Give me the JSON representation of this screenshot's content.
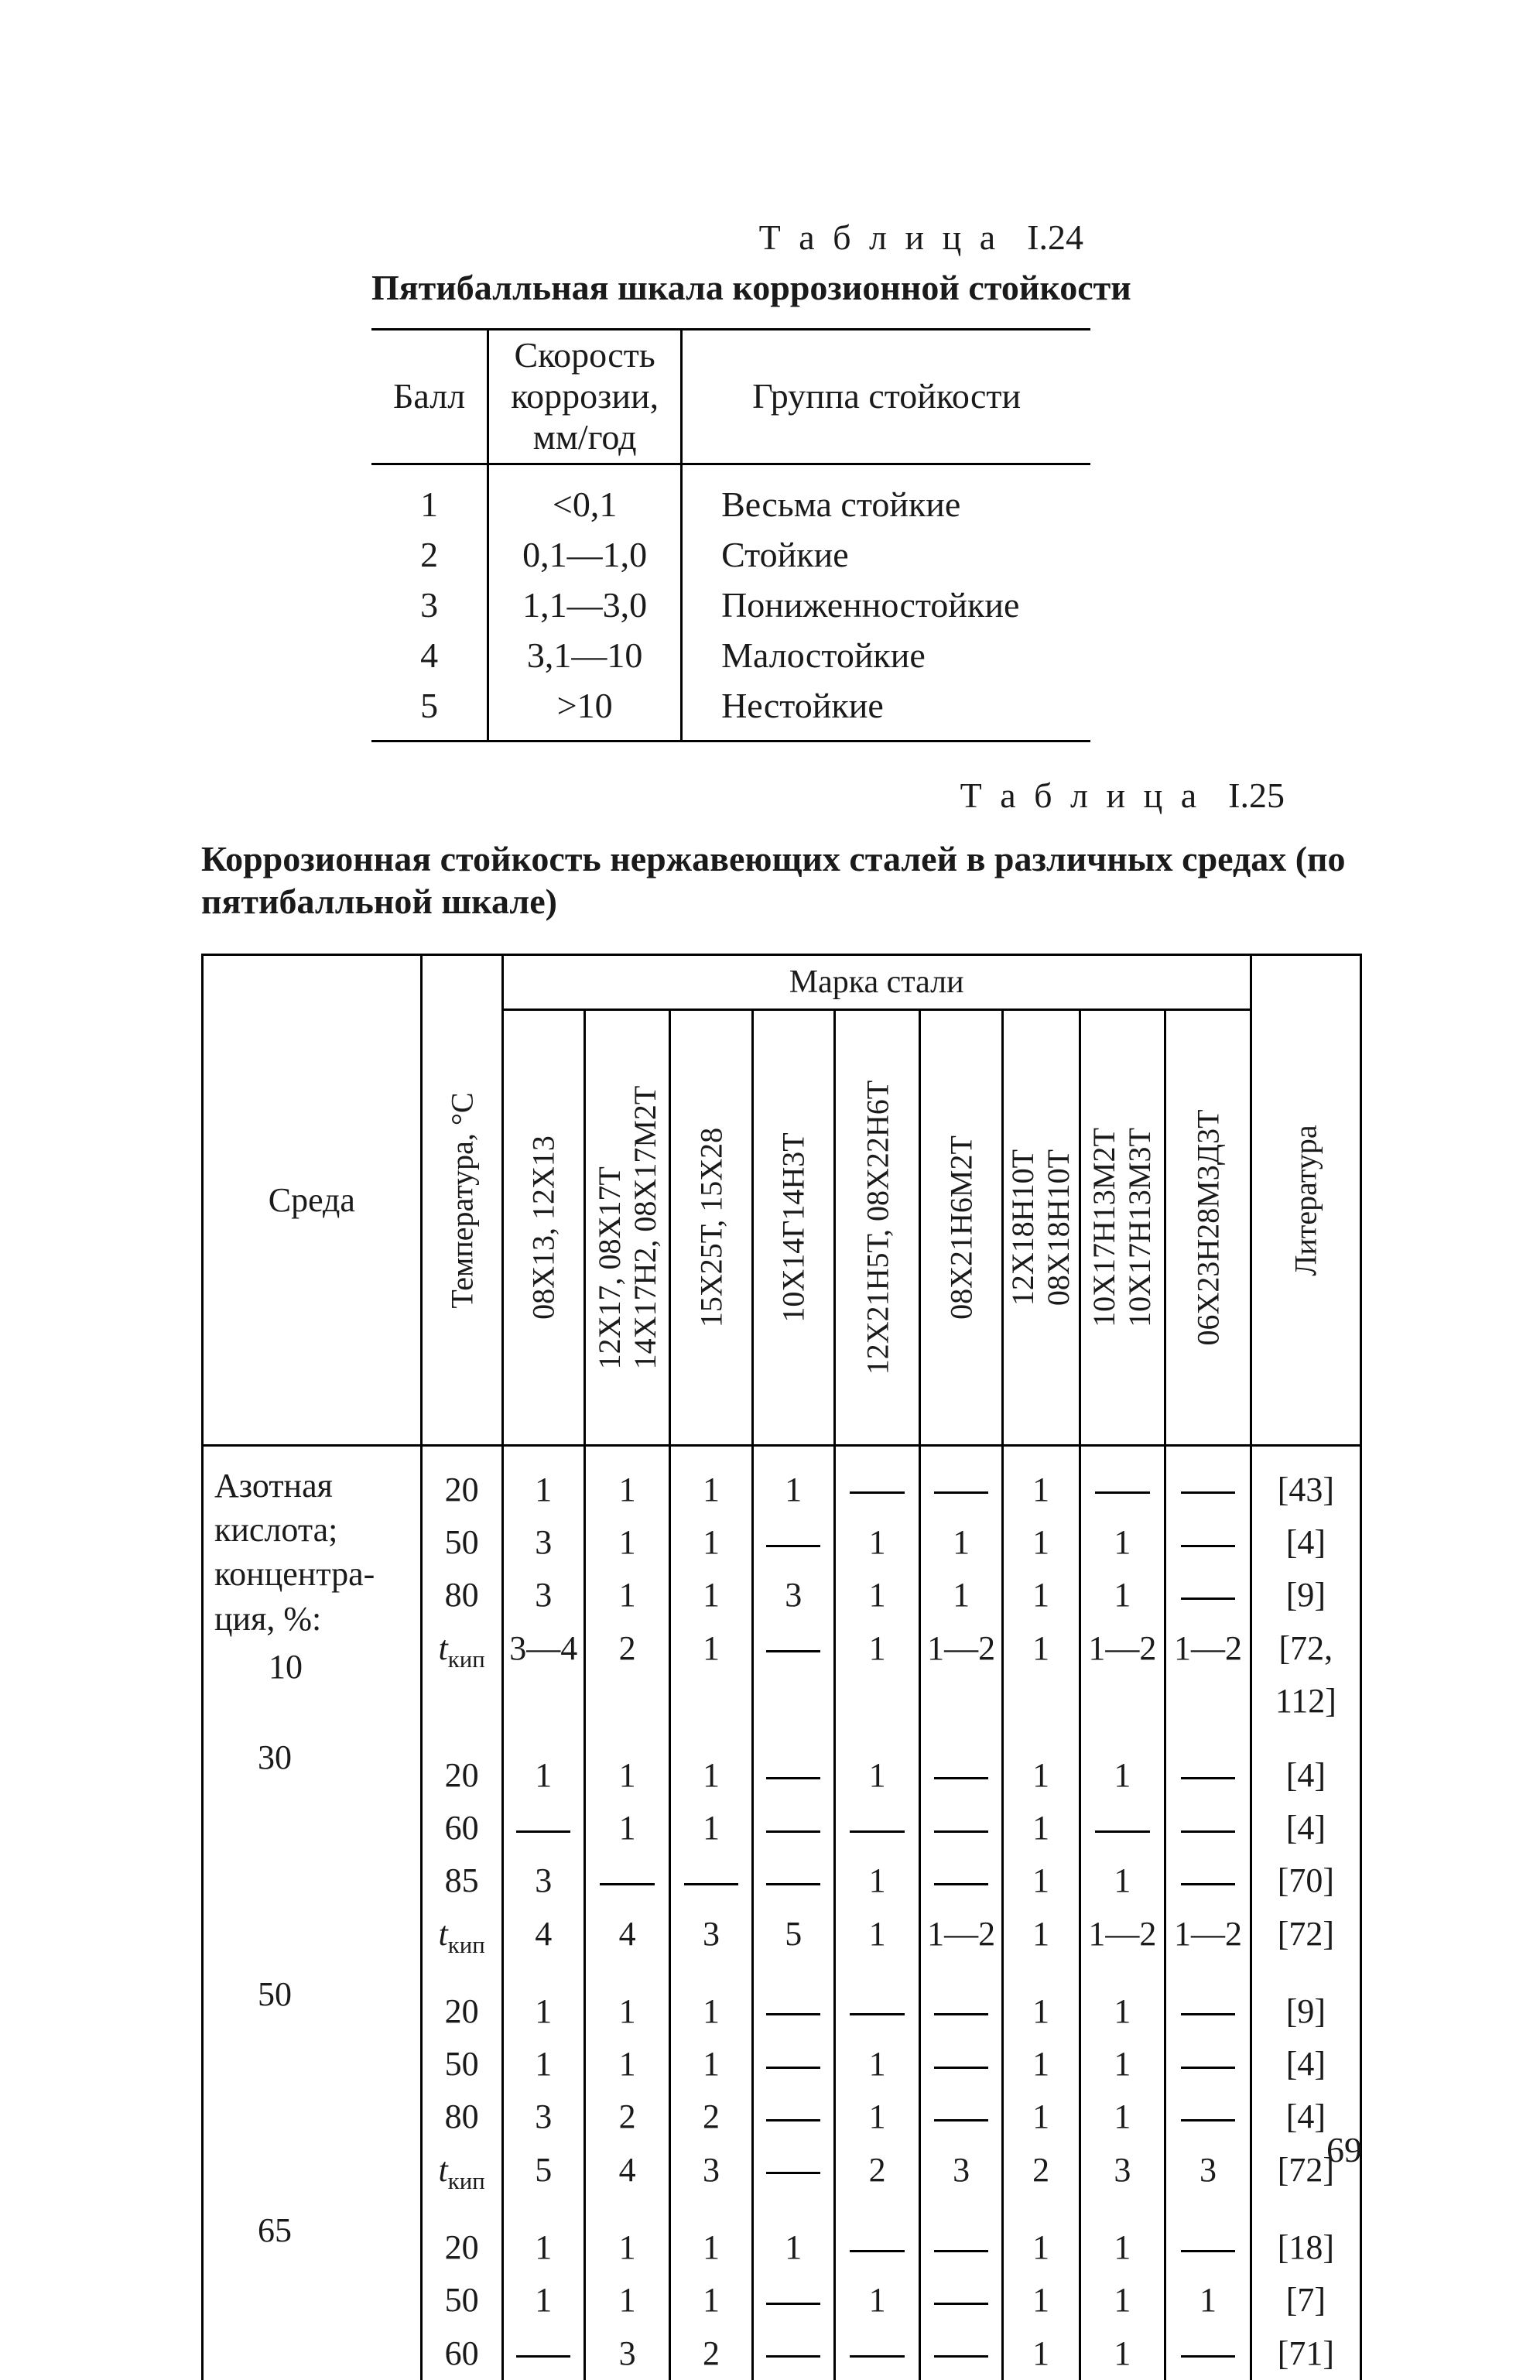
{
  "table124": {
    "label_prefix": "Т а б л и ц а",
    "label_num": "I.24",
    "title": "Пятибалльная шкала коррозионной стойкости",
    "headers": {
      "ball": "Балл",
      "rate": "Скорость\nкоррозии,\nмм/год",
      "group": "Группа стойкости"
    },
    "rows": [
      {
        "ball": "1",
        "rate": "<0,1",
        "group": "Весьма стойкие"
      },
      {
        "ball": "2",
        "rate": "0,1—1,0",
        "group": "Стойкие"
      },
      {
        "ball": "3",
        "rate": "1,1—3,0",
        "group": "Пониженностойкие"
      },
      {
        "ball": "4",
        "rate": "3,1—10",
        "group": "Малостойкие"
      },
      {
        "ball": "5",
        "rate": ">10",
        "group": "Нестойкие"
      }
    ]
  },
  "table125": {
    "label_prefix": "Т а б л и ц а",
    "label_num": "I.25",
    "title": "Коррозионная стойкость нержавеющих сталей в различных средах (по пятибалльной шкале)",
    "headers": {
      "env": "Среда",
      "temp": "Температура, °С",
      "spanner": "Марка стали",
      "steels": [
        "08Х13, 12Х13",
        "12Х17, 08Х17Т\n14Х17Н2, 08Х17М2Т",
        "15Х25Т, 15Х28",
        "10Х14Г14Н3Т",
        "12Х21Н5Т, 08Х22Н6Т",
        "08Х21Н6М2Т",
        "12Х18Н10Т\n08Х18Н10Т",
        "10Х17Н13М2Т\n10Х17Н13М3Т",
        "06Х23Н28М3Д3Т"
      ],
      "lit": "Литература"
    },
    "body": {
      "env_heading": "Азотная кислота; концентра­ция, %:",
      "groups": [
        {
          "conc": "10",
          "rows": [
            {
              "t": "20",
              "v": [
                "1",
                "1",
                "1",
                "1",
                "—",
                "—",
                "1",
                "—",
                "—"
              ],
              "lit": "[43]"
            },
            {
              "t": "50",
              "v": [
                "3",
                "1",
                "1",
                "—",
                "1",
                "1",
                "1",
                "1",
                "—"
              ],
              "lit": "[4]"
            },
            {
              "t": "80",
              "v": [
                "3",
                "1",
                "1",
                "3",
                "1",
                "1",
                "1",
                "1",
                "—"
              ],
              "lit": "[9]"
            },
            {
              "t": "tкип",
              "v": [
                "3—4",
                "2",
                "1",
                "—",
                "1",
                "1—2",
                "1",
                "1—2",
                "1—2"
              ],
              "lit": "[72, 112]"
            }
          ]
        },
        {
          "conc": "30",
          "rows": [
            {
              "t": "20",
              "v": [
                "1",
                "1",
                "1",
                "—",
                "1",
                "—",
                "1",
                "1",
                "—"
              ],
              "lit": "[4]"
            },
            {
              "t": "60",
              "v": [
                "—",
                "1",
                "1",
                "—",
                "—",
                "—",
                "1",
                "—",
                "—"
              ],
              "lit": "[4]"
            },
            {
              "t": "85",
              "v": [
                "3",
                "—",
                "—",
                "—",
                "1",
                "—",
                "1",
                "1",
                "—"
              ],
              "lit": "[70]"
            },
            {
              "t": "tкип",
              "v": [
                "4",
                "4",
                "3",
                "5",
                "1",
                "1—2",
                "1",
                "1—2",
                "1—2"
              ],
              "lit": "[72]"
            }
          ]
        },
        {
          "conc": "50",
          "rows": [
            {
              "t": "20",
              "v": [
                "1",
                "1",
                "1",
                "—",
                "—",
                "—",
                "1",
                "1",
                "—"
              ],
              "lit": "[9]"
            },
            {
              "t": "50",
              "v": [
                "1",
                "1",
                "1",
                "—",
                "1",
                "—",
                "1",
                "1",
                "—"
              ],
              "lit": "[4]"
            },
            {
              "t": "80",
              "v": [
                "3",
                "2",
                "2",
                "—",
                "1",
                "—",
                "1",
                "1",
                "—"
              ],
              "lit": "[4]"
            },
            {
              "t": "tкип",
              "v": [
                "5",
                "4",
                "3",
                "—",
                "2",
                "3",
                "2",
                "3",
                "3"
              ],
              "lit": "[72]"
            }
          ]
        },
        {
          "conc": "65",
          "rows": [
            {
              "t": "20",
              "v": [
                "1",
                "1",
                "1",
                "1",
                "—",
                "—",
                "1",
                "1",
                "—"
              ],
              "lit": "[18]"
            },
            {
              "t": "50",
              "v": [
                "1",
                "1",
                "1",
                "—",
                "1",
                "—",
                "1",
                "1",
                "1"
              ],
              "lit": "[7]"
            },
            {
              "t": "60",
              "v": [
                "—",
                "3",
                "2",
                "—",
                "—",
                "—",
                "1",
                "1",
                "—"
              ],
              "lit": "[71]"
            }
          ]
        }
      ]
    }
  },
  "page_number": "69"
}
